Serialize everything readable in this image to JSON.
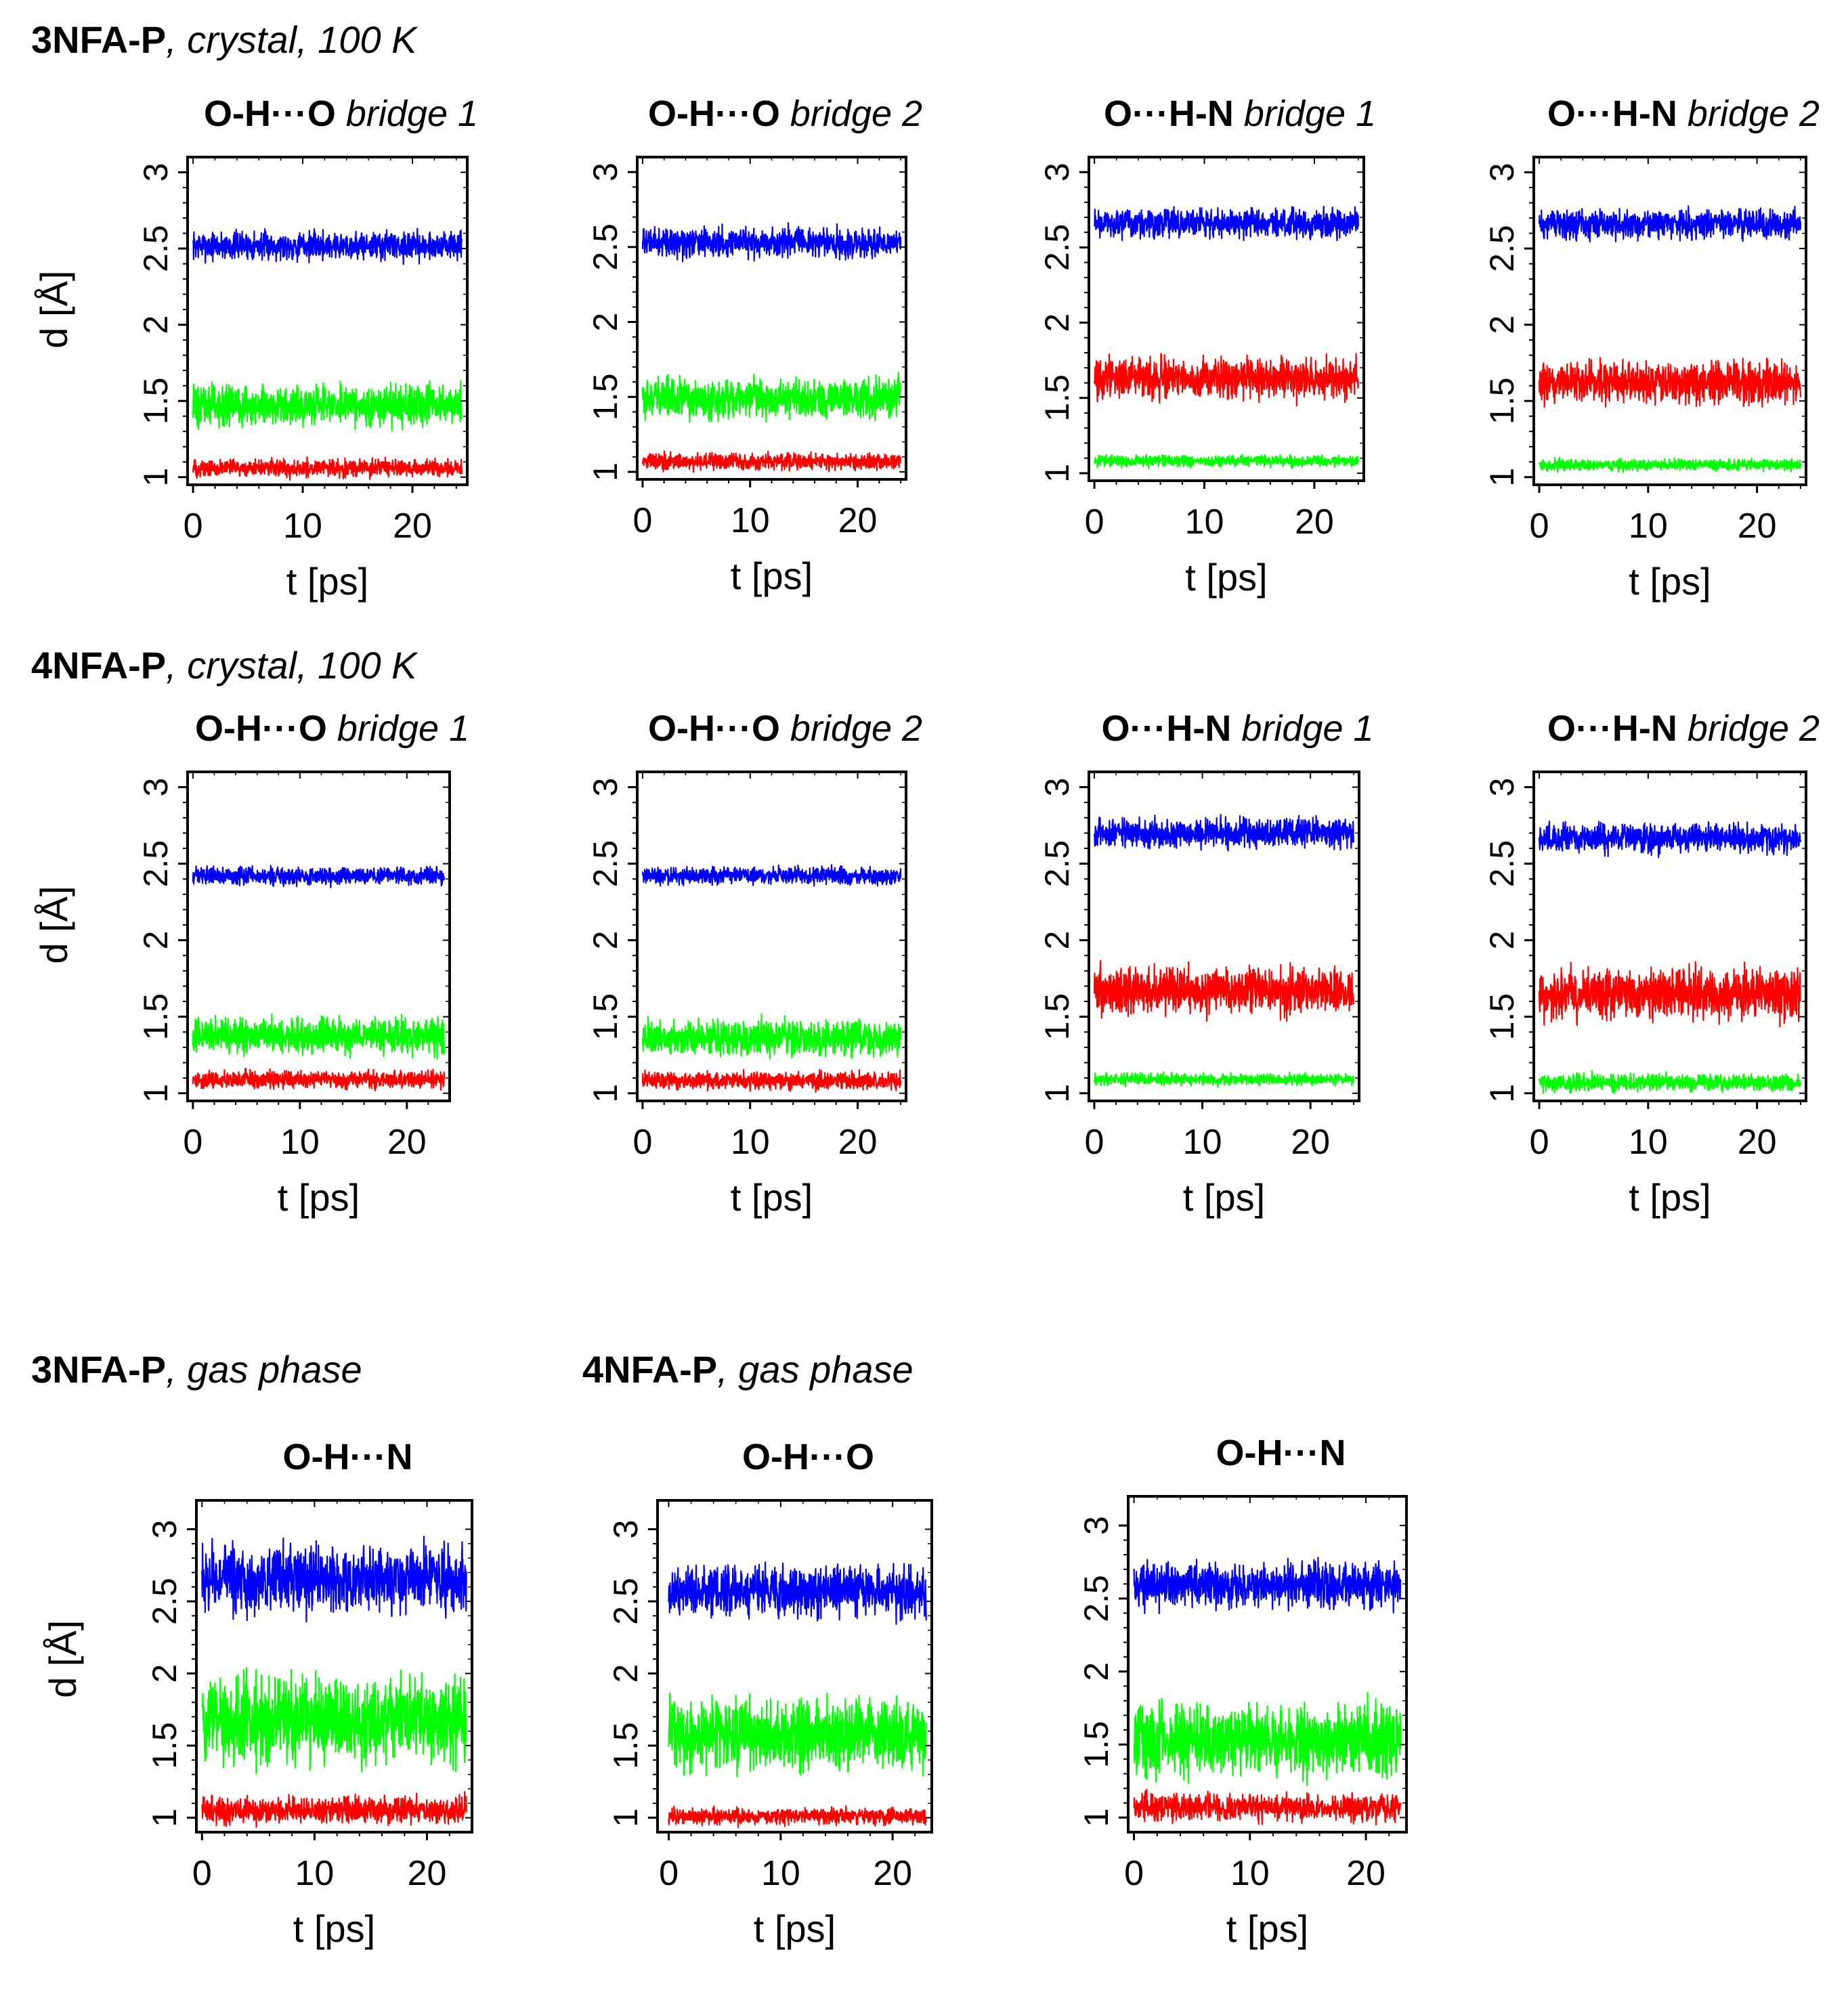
{
  "sections": [
    {
      "bold": "3NFA-P",
      "italic": ", crystal, 100 K"
    },
    {
      "bold": "4NFA-P",
      "italic": ", crystal, 100 K"
    },
    {
      "bold": "3NFA-P",
      "italic": ", gas phase"
    },
    {
      "bold": "4NFA-P",
      "italic": ", gas phase"
    }
  ],
  "series_colors": {
    "blue": "#0000ff",
    "green": "#00ff00",
    "red": "#ff0000"
  },
  "axis_common": {
    "xlabel": "t [ps]",
    "ylabel": "d [Å]",
    "xticks": [
      "0",
      "10",
      "20"
    ],
    "yticks": [
      "1",
      "1.5",
      "2",
      "2.5",
      "3"
    ]
  },
  "chart_data": [
    {
      "type": "line",
      "section": 0,
      "title_bold": "O-H···O",
      "title_italic": " bridge 1",
      "xlabel": "t [ps]",
      "ylabel": "d [Å]",
      "xlim": [
        -0.5,
        25
      ],
      "ylim": [
        0.95,
        3.1
      ],
      "series": [
        {
          "name": "blue",
          "mean": 2.52,
          "noise": 0.05
        },
        {
          "name": "green",
          "mean": 1.47,
          "noise": 0.07
        },
        {
          "name": "red",
          "mean": 1.06,
          "noise": 0.03
        }
      ]
    },
    {
      "type": "line",
      "section": 0,
      "title_bold": "O-H···O",
      "title_italic": " bridge 2",
      "xlabel": "t [ps]",
      "ylabel": "d [Å]",
      "xlim": [
        -0.5,
        24.5
      ],
      "ylim": [
        0.95,
        3.1
      ],
      "series": [
        {
          "name": "blue",
          "mean": 2.53,
          "noise": 0.05
        },
        {
          "name": "green",
          "mean": 1.49,
          "noise": 0.07
        },
        {
          "name": "red",
          "mean": 1.07,
          "noise": 0.03
        }
      ]
    },
    {
      "type": "line",
      "section": 0,
      "title_bold": "O···H-N",
      "title_italic": " bridge 1",
      "xlabel": "t [ps]",
      "ylabel": "d [Å]",
      "xlim": [
        -0.5,
        24.5
      ],
      "ylim": [
        0.95,
        3.1
      ],
      "series": [
        {
          "name": "blue",
          "mean": 2.66,
          "noise": 0.05
        },
        {
          "name": "red",
          "mean": 1.63,
          "noise": 0.07
        },
        {
          "name": "green",
          "mean": 1.08,
          "noise": 0.02
        }
      ]
    },
    {
      "type": "line",
      "section": 0,
      "title_bold": "O···H-N",
      "title_italic": " bridge 2",
      "xlabel": "t [ps]",
      "ylabel": "d [Å]",
      "xlim": [
        -0.5,
        24.5
      ],
      "ylim": [
        0.95,
        3.1
      ],
      "series": [
        {
          "name": "blue",
          "mean": 2.66,
          "noise": 0.05
        },
        {
          "name": "red",
          "mean": 1.62,
          "noise": 0.07
        },
        {
          "name": "green",
          "mean": 1.08,
          "noise": 0.02
        }
      ]
    },
    {
      "type": "line",
      "section": 1,
      "title_bold": "O-H···O",
      "title_italic": " bridge 1",
      "xlabel": "t [ps]",
      "ylabel": "d [Å]",
      "xlim": [
        -0.5,
        24
      ],
      "ylim": [
        0.95,
        3.1
      ],
      "series": [
        {
          "name": "blue",
          "mean": 2.42,
          "noise": 0.03
        },
        {
          "name": "green",
          "mean": 1.38,
          "noise": 0.06
        },
        {
          "name": "red",
          "mean": 1.09,
          "noise": 0.03
        }
      ]
    },
    {
      "type": "line",
      "section": 1,
      "title_bold": "O-H···O",
      "title_italic": " bridge 2",
      "xlabel": "t [ps]",
      "ylabel": "d [Å]",
      "xlim": [
        -0.5,
        24.5
      ],
      "ylim": [
        0.95,
        3.1
      ],
      "series": [
        {
          "name": "blue",
          "mean": 2.42,
          "noise": 0.03
        },
        {
          "name": "green",
          "mean": 1.36,
          "noise": 0.06
        },
        {
          "name": "red",
          "mean": 1.08,
          "noise": 0.03
        }
      ]
    },
    {
      "type": "line",
      "section": 1,
      "title_bold": "O···H-N",
      "title_italic": " bridge 1",
      "xlabel": "t [ps]",
      "ylabel": "d [Å]",
      "xlim": [
        -0.5,
        24.5
      ],
      "ylim": [
        0.95,
        3.1
      ],
      "series": [
        {
          "name": "blue",
          "mean": 2.7,
          "noise": 0.05
        },
        {
          "name": "red",
          "mean": 1.67,
          "noise": 0.08
        },
        {
          "name": "green",
          "mean": 1.09,
          "noise": 0.02
        }
      ]
    },
    {
      "type": "line",
      "section": 1,
      "title_bold": "O···H-N",
      "title_italic": " bridge 2",
      "xlabel": "t [ps]",
      "ylabel": "d [Å]",
      "xlim": [
        -0.5,
        24.5
      ],
      "ylim": [
        0.95,
        3.1
      ],
      "series": [
        {
          "name": "blue",
          "mean": 2.67,
          "noise": 0.05
        },
        {
          "name": "red",
          "mean": 1.65,
          "noise": 0.09
        },
        {
          "name": "green",
          "mean": 1.07,
          "noise": 0.03
        }
      ]
    },
    {
      "type": "line",
      "section": 2,
      "title_bold": "O-H···N",
      "title_italic": "",
      "xlabel": "t [ps]",
      "ylabel": "d [Å]",
      "xlim": [
        -0.5,
        24
      ],
      "ylim": [
        0.9,
        3.2
      ],
      "series": [
        {
          "name": "blue",
          "mean": 2.65,
          "noise": 0.12
        },
        {
          "name": "green",
          "mean": 1.68,
          "noise": 0.16
        },
        {
          "name": "red",
          "mean": 1.05,
          "noise": 0.05
        }
      ]
    },
    {
      "type": "line",
      "section": 3,
      "title_bold": "O-H···O",
      "title_italic": "",
      "xlabel": "t [ps]",
      "ylabel": "d [Å]",
      "xlim": [
        -1,
        23.5
      ],
      "ylim": [
        0.9,
        3.2
      ],
      "series": [
        {
          "name": "blue",
          "mean": 2.57,
          "noise": 0.09
        },
        {
          "name": "green",
          "mean": 1.58,
          "noise": 0.13
        },
        {
          "name": "red",
          "mean": 1.01,
          "noise": 0.03
        }
      ]
    },
    {
      "type": "line",
      "section": 3,
      "title_bold": "O-H···N",
      "title_italic": "",
      "xlabel": "t [ps]",
      "ylabel": "d [Å]",
      "xlim": [
        -0.5,
        23.5
      ],
      "ylim": [
        0.9,
        3.2
      ],
      "series": [
        {
          "name": "blue",
          "mean": 2.59,
          "noise": 0.08
        },
        {
          "name": "green",
          "mean": 1.53,
          "noise": 0.13
        },
        {
          "name": "red",
          "mean": 1.07,
          "noise": 0.05
        }
      ]
    }
  ]
}
